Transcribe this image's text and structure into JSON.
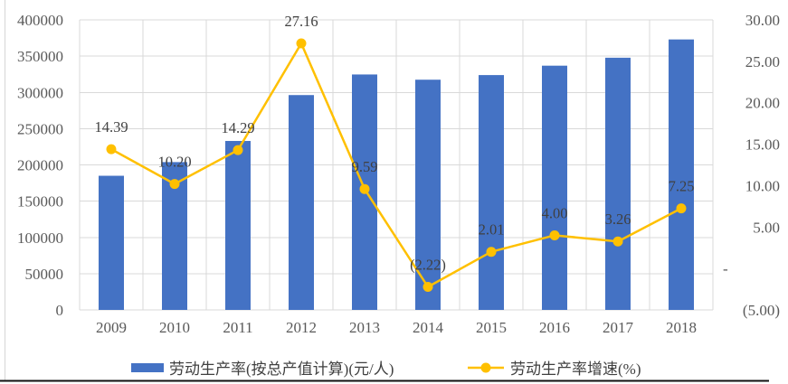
{
  "chart_data": {
    "type": "bar+line",
    "categories": [
      "2009",
      "2010",
      "2011",
      "2012",
      "2013",
      "2014",
      "2015",
      "2016",
      "2017",
      "2018"
    ],
    "series": [
      {
        "name": "劳动生产率(按总产值计算)(元/人)",
        "type": "bar",
        "axis": "left",
        "color": "#4472C4",
        "values": [
          185000,
          203870,
          233000,
          296290,
          324700,
          317490,
          323870,
          336830,
          347810,
          373020
        ]
      },
      {
        "name": "劳动生产率增速(%)",
        "type": "line",
        "axis": "right",
        "color": "#FFC000",
        "values": [
          14.39,
          10.2,
          14.29,
          27.16,
          9.59,
          -2.22,
          2.01,
          4.0,
          3.26,
          7.25
        ],
        "point_labels": [
          "14.39",
          "10.20",
          "14.29",
          "27.16",
          "9.59",
          "(2.22)",
          "2.01",
          "4.00",
          "3.26",
          "7.25"
        ]
      }
    ],
    "left_axis": {
      "min": 0,
      "max": 400000,
      "step": 50000,
      "tick_labels": [
        "400000",
        "350000",
        "300000",
        "250000",
        "200000",
        "150000",
        "100000",
        "50000",
        "0"
      ]
    },
    "right_axis": {
      "min": -5,
      "max": 30,
      "step": 5,
      "tick_labels": [
        "30.00",
        "25.00",
        "20.00",
        "15.00",
        "10.00",
        "5.00",
        "-",
        "(5.00)"
      ]
    },
    "grid": true,
    "legend_position": "bottom",
    "title": "",
    "xlabel": "",
    "ylabel": ""
  },
  "legend": {
    "bar_label": "劳动生产率(按总产值计算)(元/人)",
    "line_label": "劳动生产率增速(%)"
  },
  "colors": {
    "bar": "#4472C4",
    "line": "#FFC000",
    "gridline": "#D9D9D9",
    "axis_text": "#595959",
    "data_label_text": "#404040",
    "cell_border_left": "#D6D6D6",
    "cell_border_bottom": "#111111"
  }
}
